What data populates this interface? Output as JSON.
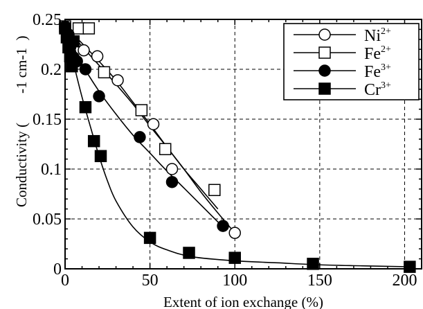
{
  "chart_data": {
    "type": "scatter",
    "title": "",
    "xlabel": "Extent of ion exchange (%)",
    "ylabel_main": "Conductivity (",
    "ylabel_unit": "-1 cm-1",
    "ylabel_close": ")",
    "xlim": [
      0,
      210
    ],
    "ylim": [
      0,
      0.25
    ],
    "x_ticks": [
      0,
      50,
      100,
      150,
      200
    ],
    "x_tick_labels": [
      "0",
      "50",
      "100",
      "150",
      "200"
    ],
    "y_ticks": [
      0,
      0.05,
      0.1,
      0.15,
      0.2,
      0.25
    ],
    "y_tick_labels": [
      "0",
      "0.05",
      "0.1",
      "0.15",
      "0.2",
      "0.25"
    ],
    "grid": true,
    "legend_position": "top-right",
    "series": [
      {
        "name": "Ni2+",
        "label_base": "Ni",
        "label_sup": "2+",
        "marker": "circle-open",
        "x": [
          0,
          11,
          19,
          31,
          52,
          63,
          100
        ],
        "y": [
          0.241,
          0.219,
          0.213,
          0.189,
          0.145,
          0.1,
          0.036
        ],
        "fit_x": [
          0,
          10,
          20,
          30,
          40,
          50,
          60,
          70,
          80,
          90,
          100
        ],
        "fit_y": [
          0.243,
          0.226,
          0.208,
          0.189,
          0.167,
          0.145,
          0.122,
          0.1,
          0.077,
          0.056,
          0.036
        ]
      },
      {
        "name": "Fe2+",
        "label_base": "Fe",
        "label_sup": "2+",
        "marker": "square-open",
        "x": [
          0,
          8,
          14,
          23,
          45,
          59,
          88
        ],
        "y": [
          0.243,
          0.241,
          0.241,
          0.197,
          0.159,
          0.12,
          0.079
        ],
        "fit_x": [
          0,
          10,
          20,
          30,
          40,
          50,
          60,
          70,
          80,
          90
        ],
        "fit_y": [
          0.243,
          0.223,
          0.204,
          0.185,
          0.165,
          0.143,
          0.122,
          0.1,
          0.08,
          0.06
        ]
      },
      {
        "name": "Fe3+",
        "label_base": "Fe",
        "label_sup": "3+",
        "marker": "circle-filled",
        "x": [
          0,
          2,
          3,
          5,
          7,
          12,
          20,
          44,
          63,
          93
        ],
        "y": [
          0.243,
          0.235,
          0.222,
          0.212,
          0.208,
          0.2,
          0.173,
          0.132,
          0.087,
          0.043
        ],
        "fit_x": [
          0,
          5,
          10,
          20,
          30,
          40,
          50,
          60,
          70,
          80,
          90,
          95
        ],
        "fit_y": [
          0.243,
          0.222,
          0.205,
          0.178,
          0.155,
          0.134,
          0.116,
          0.098,
          0.081,
          0.064,
          0.047,
          0.039
        ]
      },
      {
        "name": "Cr3+",
        "label_base": "Cr",
        "label_sup": "3+",
        "marker": "square-filled",
        "x": [
          0,
          1,
          2,
          3,
          4,
          5,
          12,
          17,
          21,
          50,
          73,
          100,
          146,
          203
        ],
        "y": [
          0.241,
          0.232,
          0.222,
          0.213,
          0.203,
          0.228,
          0.162,
          0.128,
          0.113,
          0.031,
          0.016,
          0.011,
          0.005,
          0.002
        ],
        "fit_x": [
          0,
          5,
          10,
          15,
          20,
          25,
          30,
          40,
          50,
          60,
          75,
          100,
          125,
          150,
          175,
          205
        ],
        "fit_y": [
          0.243,
          0.206,
          0.172,
          0.142,
          0.113,
          0.088,
          0.068,
          0.042,
          0.027,
          0.019,
          0.012,
          0.008,
          0.006,
          0.004,
          0.003,
          0.002
        ]
      }
    ]
  }
}
